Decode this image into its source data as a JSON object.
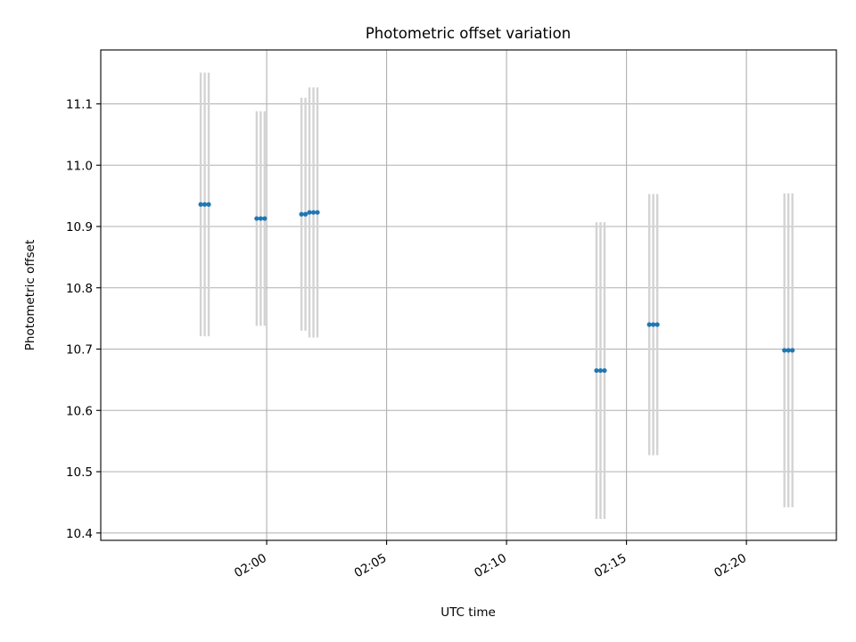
{
  "chart_data": {
    "type": "scatter",
    "title": "Photometric offset variation",
    "xlabel": "UTC time",
    "ylabel": "Photometric offset",
    "x_axis": "time (HH:MM)",
    "xlim": [
      "01:53:05",
      "02:23:45"
    ],
    "ylim": [
      10.388,
      11.188
    ],
    "x_ticks": [
      "02:00",
      "02:05",
      "02:10",
      "02:15",
      "02:20"
    ],
    "y_ticks": [
      "10.4",
      "10.5",
      "10.6",
      "10.7",
      "10.8",
      "10.9",
      "11.0",
      "11.1"
    ],
    "grid": true,
    "legend": "none",
    "marker_color": "#1f77b4",
    "errorbar_color": "#d3d3d3",
    "series": [
      {
        "points": [
          {
            "t": "01:57:15",
            "y": 10.936,
            "err": 0.215
          },
          {
            "t": "01:57:25",
            "y": 10.936,
            "err": 0.215
          },
          {
            "t": "01:57:35",
            "y": 10.936,
            "err": 0.215
          },
          {
            "t": "01:59:35",
            "y": 10.913,
            "err": 0.175
          },
          {
            "t": "01:59:45",
            "y": 10.913,
            "err": 0.175
          },
          {
            "t": "01:59:55",
            "y": 10.913,
            "err": 0.175
          },
          {
            "t": "02:01:27",
            "y": 10.92,
            "err": 0.19
          },
          {
            "t": "02:01:37",
            "y": 10.92,
            "err": 0.19
          },
          {
            "t": "02:01:47",
            "y": 10.923,
            "err": 0.204
          },
          {
            "t": "02:01:57",
            "y": 10.923,
            "err": 0.204
          },
          {
            "t": "02:02:07",
            "y": 10.923,
            "err": 0.204
          },
          {
            "t": "02:13:45",
            "y": 10.665,
            "err": 0.242
          },
          {
            "t": "02:13:55",
            "y": 10.665,
            "err": 0.242
          },
          {
            "t": "02:14:05",
            "y": 10.665,
            "err": 0.242
          },
          {
            "t": "02:15:57",
            "y": 10.74,
            "err": 0.213
          },
          {
            "t": "02:16:07",
            "y": 10.74,
            "err": 0.213
          },
          {
            "t": "02:16:17",
            "y": 10.74,
            "err": 0.213
          },
          {
            "t": "02:21:35",
            "y": 10.698,
            "err": 0.256
          },
          {
            "t": "02:21:45",
            "y": 10.698,
            "err": 0.256
          },
          {
            "t": "02:21:55",
            "y": 10.698,
            "err": 0.256
          }
        ]
      }
    ]
  }
}
